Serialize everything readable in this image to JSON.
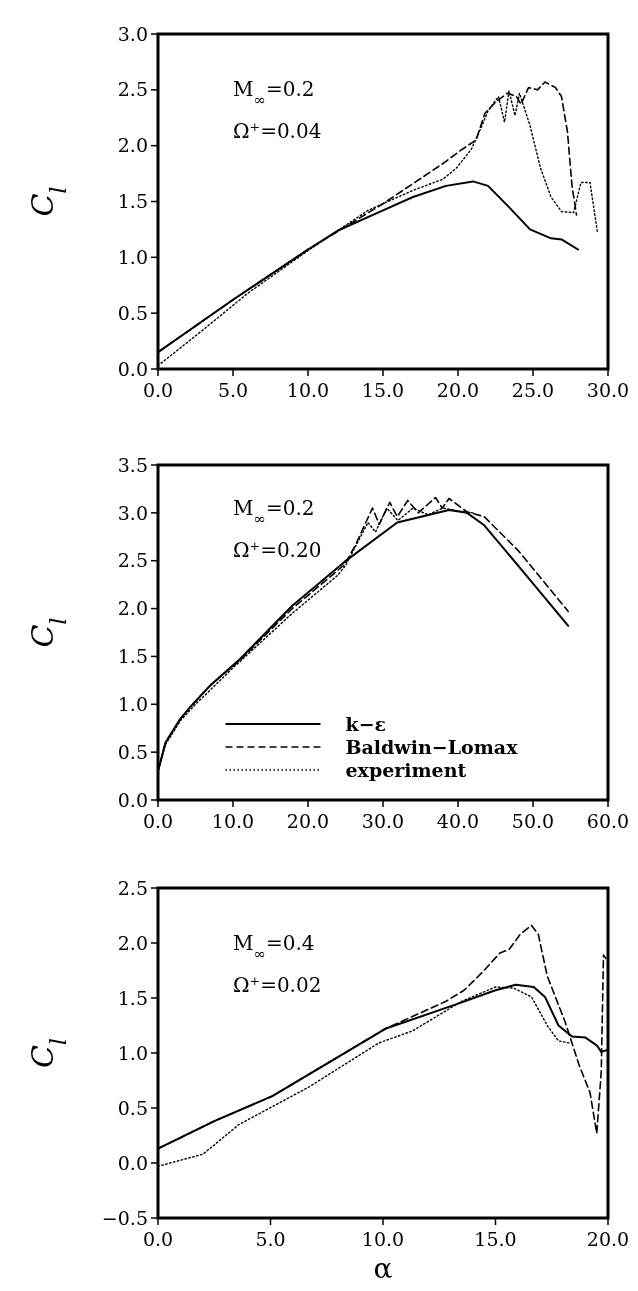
{
  "chart_data": [
    {
      "type": "line",
      "ylabel": "C$_{l}$",
      "xlim": [
        0,
        30
      ],
      "ylim": [
        0,
        3
      ],
      "xticks": [
        {
          "value": 0,
          "label": "0.0"
        },
        {
          "value": 5,
          "label": "5.0"
        },
        {
          "value": 10,
          "label": "10.0"
        },
        {
          "value": 15,
          "label": "15.0"
        },
        {
          "value": 20,
          "label": "20.0"
        },
        {
          "value": 25,
          "label": "25.0"
        },
        {
          "value": 30,
          "label": "30.0"
        }
      ],
      "yticks": [
        {
          "value": 0,
          "label": "0.0"
        },
        {
          "value": 0.5,
          "label": "0.5"
        },
        {
          "value": 1,
          "label": "1.0"
        },
        {
          "value": 1.5,
          "label": "1.5"
        },
        {
          "value": 2,
          "label": "2.0"
        },
        {
          "value": 2.5,
          "label": "2.5"
        },
        {
          "value": 3,
          "label": "3.0"
        }
      ],
      "grid": false,
      "legend": false,
      "annotations": [
        "M$_{∞}$=0.2",
        "Ω⁺=0.04"
      ],
      "series": [
        {
          "color": "#000000",
          "line_style": "solid",
          "x": [
            0,
            5,
            10,
            12,
            15,
            17,
            19.2,
            21,
            22,
            23.4,
            24.8,
            26.2,
            26.9,
            28
          ],
          "values": [
            0.15,
            0.62,
            1.07,
            1.24,
            1.42,
            1.54,
            1.64,
            1.68,
            1.64,
            1.45,
            1.25,
            1.17,
            1.16,
            1.07
          ]
        },
        {
          "color": "#000000",
          "line_style": "dashed",
          "x": [
            0,
            5,
            10,
            15,
            19,
            20.2,
            21.2,
            21.8,
            22.5,
            23.3,
            23.9,
            24.2,
            24.7,
            25.3,
            25.8,
            26.5,
            26.9,
            27.3,
            27.6,
            27.9
          ],
          "values": [
            0.15,
            0.62,
            1.07,
            1.48,
            1.84,
            1.96,
            2.05,
            2.29,
            2.39,
            2.47,
            2.44,
            2.37,
            2.52,
            2.5,
            2.57,
            2.52,
            2.44,
            2.12,
            1.64,
            1.38
          ]
        },
        {
          "color": "#000000",
          "line_style": "dotted",
          "x": [
            0,
            3,
            6,
            10,
            14,
            17,
            19,
            19.9,
            20.9,
            21.6,
            22,
            22.7,
            23.1,
            23.4,
            23.8,
            24.1,
            24.8,
            25.5,
            26.2,
            26.9,
            27.7,
            28.2,
            28.8,
            29.3
          ],
          "values": [
            0.03,
            0.35,
            0.68,
            1.06,
            1.42,
            1.6,
            1.7,
            1.8,
            1.97,
            2.18,
            2.31,
            2.44,
            2.21,
            2.49,
            2.27,
            2.47,
            2.18,
            1.8,
            1.54,
            1.41,
            1.4,
            1.67,
            1.67,
            1.22
          ]
        }
      ]
    },
    {
      "type": "line",
      "ylabel": "C$_{l}$",
      "xlim": [
        0,
        60
      ],
      "ylim": [
        0,
        3.5
      ],
      "xticks": [
        {
          "value": 0,
          "label": "0.0"
        },
        {
          "value": 10,
          "label": "10.0"
        },
        {
          "value": 20,
          "label": "20.0"
        },
        {
          "value": 30,
          "label": "30.0"
        },
        {
          "value": 40,
          "label": "40.0"
        },
        {
          "value": 50,
          "label": "50.0"
        },
        {
          "value": 60,
          "label": "60.0"
        }
      ],
      "yticks": [
        {
          "value": 0,
          "label": "0.0"
        },
        {
          "value": 0.5,
          "label": "0.5"
        },
        {
          "value": 1,
          "label": "1.0"
        },
        {
          "value": 1.5,
          "label": "1.5"
        },
        {
          "value": 2,
          "label": "2.0"
        },
        {
          "value": 2.5,
          "label": "2.5"
        },
        {
          "value": 3,
          "label": "3.0"
        },
        {
          "value": 3.5,
          "label": "3.5"
        }
      ],
      "grid": false,
      "legend": "bottom right",
      "annotations": [
        "M$_{∞}$=0.2",
        "Ω⁺=0.20"
      ],
      "series": [
        {
          "name": "k−ε",
          "color": "#000000",
          "line_style": "solid",
          "x": [
            0,
            1,
            3,
            4.4,
            7,
            10.9,
            17.9,
            24.9,
            31.9,
            38.8,
            41.2,
            43.5,
            48.1,
            54.7
          ],
          "values": [
            0.3,
            0.6,
            0.85,
            0.98,
            1.2,
            1.47,
            2.03,
            2.49,
            2.9,
            3.03,
            3.0,
            2.87,
            2.44,
            1.82
          ]
        },
        {
          "name": "Baldwin−Lomax",
          "color": "#000000",
          "line_style": "dashed",
          "x": [
            0,
            1,
            3,
            4.4,
            7,
            10.9,
            17.9,
            24.9,
            26.3,
            28.6,
            29.5,
            30.9,
            31.9,
            33.3,
            34.7,
            37,
            37.9,
            38.8,
            41.2,
            43.5,
            48.1,
            54.7
          ],
          "values": [
            0.3,
            0.6,
            0.85,
            0.98,
            1.2,
            1.46,
            2.0,
            2.46,
            2.66,
            3.05,
            2.88,
            3.11,
            2.96,
            3.13,
            3.0,
            3.16,
            3.05,
            3.15,
            3.01,
            2.96,
            2.6,
            1.97
          ]
        },
        {
          "name": "experiment",
          "color": "#000000",
          "line_style": "dotted",
          "x": [
            0,
            1,
            3,
            5,
            10,
            17.9,
            24,
            25,
            26,
            28,
            29,
            30.5,
            32,
            34,
            36,
            38,
            40,
            42
          ],
          "values": [
            0.3,
            0.58,
            0.83,
            1.0,
            1.38,
            1.95,
            2.35,
            2.45,
            2.6,
            2.9,
            2.8,
            3.05,
            2.92,
            3.05,
            2.98,
            3.05,
            3.02,
            3.0
          ]
        }
      ]
    },
    {
      "type": "line",
      "ylabel": "C$_{l}$",
      "xlabel": "α",
      "xlim": [
        0,
        20
      ],
      "ylim": [
        -0.5,
        2.5
      ],
      "xticks": [
        {
          "value": 0,
          "label": "0.0"
        },
        {
          "value": 5,
          "label": "5.0"
        },
        {
          "value": 10,
          "label": "10.0"
        },
        {
          "value": 15,
          "label": "15.0"
        },
        {
          "value": 20,
          "label": "20.0"
        }
      ],
      "yticks": [
        {
          "value": -0.5,
          "label": "−0.5"
        },
        {
          "value": 0,
          "label": "0.0"
        },
        {
          "value": 0.5,
          "label": "0.5"
        },
        {
          "value": 1,
          "label": "1.0"
        },
        {
          "value": 1.5,
          "label": "1.5"
        },
        {
          "value": 2,
          "label": "2.0"
        },
        {
          "value": 2.5,
          "label": "2.5"
        }
      ],
      "grid": false,
      "legend": false,
      "annotations": [
        "M$_{∞}$=0.4",
        "Ω⁺=0.02"
      ],
      "series": [
        {
          "color": "#000000",
          "line_style": "solid",
          "x": [
            0,
            2.5,
            5.1,
            10.1,
            13.5,
            15,
            15.9,
            16.7,
            17.2,
            17.8,
            18.4,
            19,
            19.5,
            19.7,
            20
          ],
          "values": [
            0.13,
            0.38,
            0.61,
            1.22,
            1.46,
            1.57,
            1.62,
            1.6,
            1.51,
            1.25,
            1.15,
            1.14,
            1.07,
            1.01,
            1.03
          ]
        },
        {
          "color": "#000000",
          "line_style": "dashed",
          "x": [
            0,
            2.5,
            5.1,
            10.1,
            12.8,
            13.6,
            14.4,
            15.2,
            15.6,
            16.1,
            16.6,
            16.9,
            17.3,
            18.1,
            18.7,
            19.2,
            19.5,
            19.7,
            19.8,
            19.9
          ],
          "values": [
            0.13,
            0.38,
            0.61,
            1.22,
            1.47,
            1.57,
            1.73,
            1.91,
            1.94,
            2.08,
            2.16,
            2.08,
            1.7,
            1.28,
            0.9,
            0.64,
            0.27,
            0.83,
            1.89,
            1.86
          ]
        },
        {
          "color": "#000000",
          "line_style": "dotted",
          "x": [
            0,
            2,
            3.6,
            6.7,
            9.8,
            11.3,
            13.5,
            15,
            15.8,
            16.6,
            17.3,
            17.8,
            18.3
          ],
          "values": [
            -0.03,
            0.08,
            0.35,
            0.69,
            1.09,
            1.2,
            1.47,
            1.6,
            1.59,
            1.51,
            1.25,
            1.11,
            1.09
          ]
        }
      ]
    }
  ]
}
